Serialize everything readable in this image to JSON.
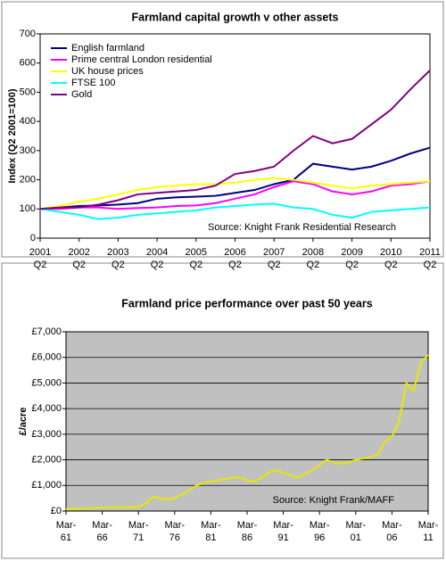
{
  "chart_data": [
    {
      "type": "line",
      "title": "Farmland capital growth v other assets",
      "ylabel": "Index (Q2 2001=100)",
      "source": "Source: Knight Frank Residential Research",
      "categories": [
        "2001 Q2",
        null,
        "2002 Q2",
        null,
        "2003 Q2",
        null,
        "2004 Q2",
        null,
        "2005 Q2",
        null,
        "2006 Q2",
        null,
        "2007 Q2",
        null,
        "2008 Q2",
        null,
        "2009 Q2",
        null,
        "2010 Q2",
        null,
        "2011 Q2"
      ],
      "ylim": [
        0,
        700
      ],
      "yticks": [
        0,
        100,
        200,
        300,
        400,
        500,
        600,
        700
      ],
      "grid": false,
      "legend": "top-left",
      "background": "#ffffff",
      "series": [
        {
          "name": "English farmland",
          "color": "#000080",
          "values": [
            100,
            105,
            110,
            112,
            115,
            120,
            135,
            140,
            142,
            145,
            155,
            165,
            185,
            200,
            255,
            245,
            235,
            245,
            265,
            290,
            310
          ]
        },
        {
          "name": "Prime central London residential",
          "color": "#ff00ff",
          "values": [
            100,
            100,
            105,
            105,
            100,
            103,
            105,
            110,
            112,
            120,
            135,
            150,
            175,
            195,
            185,
            160,
            150,
            160,
            180,
            185,
            195
          ]
        },
        {
          "name": "UK house prices",
          "color": "#ffff00",
          "values": [
            100,
            110,
            125,
            135,
            150,
            165,
            175,
            180,
            185,
            185,
            190,
            200,
            205,
            200,
            190,
            180,
            170,
            180,
            185,
            190,
            195
          ]
        },
        {
          "name": "FTSE 100",
          "color": "#00ffff",
          "values": [
            100,
            90,
            80,
            65,
            70,
            80,
            85,
            90,
            95,
            105,
            110,
            115,
            118,
            105,
            100,
            80,
            70,
            90,
            95,
            100,
            105
          ]
        },
        {
          "name": "Gold",
          "color": "#800080",
          "values": [
            100,
            105,
            105,
            115,
            130,
            150,
            155,
            160,
            165,
            180,
            220,
            230,
            245,
            300,
            350,
            325,
            340,
            390,
            440,
            510,
            575
          ]
        }
      ]
    },
    {
      "type": "line",
      "title": "Farmland price performance over past 50 years",
      "ylabel": "£/acre",
      "source": "Source: Knight Frank/MAFF",
      "categories": [
        "Mar-61",
        null,
        null,
        null,
        null,
        "Mar-66",
        null,
        null,
        null,
        null,
        "Mar-71",
        null,
        null,
        null,
        null,
        "Mar-76",
        null,
        null,
        null,
        null,
        "Mar-81",
        null,
        null,
        null,
        null,
        "Mar-86",
        null,
        null,
        null,
        null,
        "Mar-91",
        null,
        null,
        null,
        null,
        "Mar-96",
        null,
        null,
        null,
        null,
        "Mar-01",
        null,
        null,
        null,
        null,
        "Mar-06",
        null,
        null,
        null,
        null,
        "Mar-11"
      ],
      "ylim": [
        0,
        7000
      ],
      "yticks": [
        {
          "value": 0,
          "label": "£0"
        },
        {
          "value": 1000,
          "label": "£1,000"
        },
        {
          "value": 2000,
          "label": "£2,000"
        },
        {
          "value": 3000,
          "label": "£3,000"
        },
        {
          "value": 4000,
          "label": "£4,000"
        },
        {
          "value": 5000,
          "label": "£5,000"
        },
        {
          "value": 6000,
          "label": "£6,000"
        },
        {
          "value": 7000,
          "label": "£7,000"
        }
      ],
      "grid": true,
      "background": "#c0c0c0",
      "series": [
        {
          "name": null,
          "color": "#e8e800",
          "values": [
            80,
            90,
            100,
            110,
            120,
            130,
            140,
            150,
            150,
            150,
            160,
            300,
            550,
            500,
            450,
            500,
            650,
            800,
            1000,
            1100,
            1150,
            1200,
            1250,
            1300,
            1300,
            1200,
            1150,
            1300,
            1500,
            1600,
            1500,
            1400,
            1300,
            1450,
            1600,
            1800,
            2000,
            1900,
            1850,
            1900,
            2000,
            2050,
            2100,
            2200,
            2700,
            2900,
            3500,
            5000,
            4700,
            5800,
            6100
          ]
        }
      ]
    }
  ]
}
